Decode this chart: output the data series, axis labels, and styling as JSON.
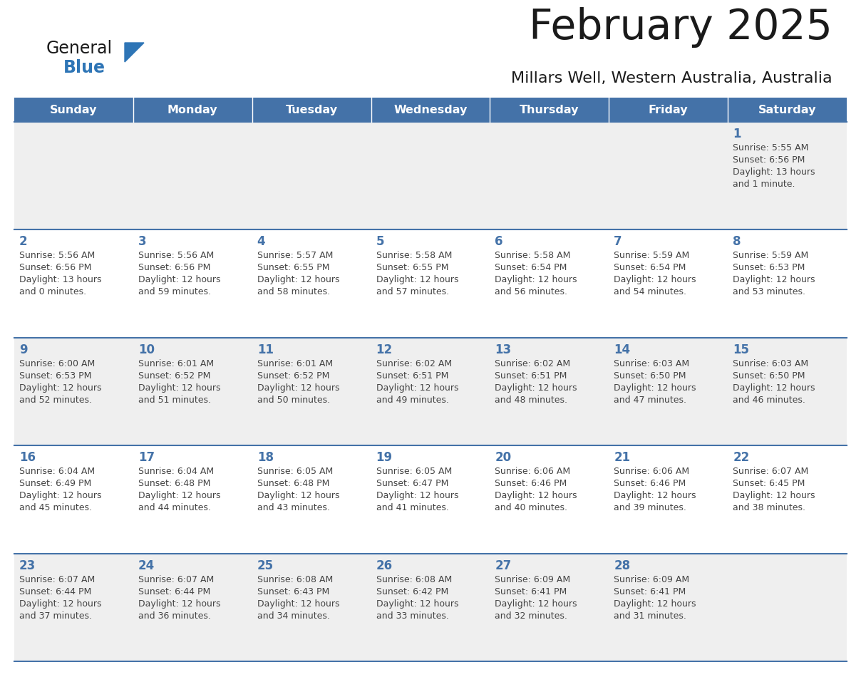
{
  "title": "February 2025",
  "subtitle": "Millars Well, Western Australia, Australia",
  "header_color": "#4472a8",
  "header_text_color": "#ffffff",
  "day_names": [
    "Sunday",
    "Monday",
    "Tuesday",
    "Wednesday",
    "Thursday",
    "Friday",
    "Saturday"
  ],
  "cell_bg_row0": "#efefef",
  "cell_bg_row1": "#ffffff",
  "cell_bg_row2": "#efefef",
  "cell_bg_row3": "#ffffff",
  "cell_bg_row4": "#efefef",
  "cell_border_color": "#4472a8",
  "day_number_color": "#4472a8",
  "text_color": "#444444",
  "logo_general_color": "#1a1a1a",
  "logo_blue_color": "#2e75b6",
  "logo_triangle_color": "#2e75b6",
  "days": [
    {
      "day": 1,
      "col": 6,
      "row": 0,
      "sunrise": "5:55 AM",
      "sunset": "6:56 PM",
      "daylight_h": "13 hours",
      "daylight_m": "and 1 minute."
    },
    {
      "day": 2,
      "col": 0,
      "row": 1,
      "sunrise": "5:56 AM",
      "sunset": "6:56 PM",
      "daylight_h": "13 hours",
      "daylight_m": "and 0 minutes."
    },
    {
      "day": 3,
      "col": 1,
      "row": 1,
      "sunrise": "5:56 AM",
      "sunset": "6:56 PM",
      "daylight_h": "12 hours",
      "daylight_m": "and 59 minutes."
    },
    {
      "day": 4,
      "col": 2,
      "row": 1,
      "sunrise": "5:57 AM",
      "sunset": "6:55 PM",
      "daylight_h": "12 hours",
      "daylight_m": "and 58 minutes."
    },
    {
      "day": 5,
      "col": 3,
      "row": 1,
      "sunrise": "5:58 AM",
      "sunset": "6:55 PM",
      "daylight_h": "12 hours",
      "daylight_m": "and 57 minutes."
    },
    {
      "day": 6,
      "col": 4,
      "row": 1,
      "sunrise": "5:58 AM",
      "sunset": "6:54 PM",
      "daylight_h": "12 hours",
      "daylight_m": "and 56 minutes."
    },
    {
      "day": 7,
      "col": 5,
      "row": 1,
      "sunrise": "5:59 AM",
      "sunset": "6:54 PM",
      "daylight_h": "12 hours",
      "daylight_m": "and 54 minutes."
    },
    {
      "day": 8,
      "col": 6,
      "row": 1,
      "sunrise": "5:59 AM",
      "sunset": "6:53 PM",
      "daylight_h": "12 hours",
      "daylight_m": "and 53 minutes."
    },
    {
      "day": 9,
      "col": 0,
      "row": 2,
      "sunrise": "6:00 AM",
      "sunset": "6:53 PM",
      "daylight_h": "12 hours",
      "daylight_m": "and 52 minutes."
    },
    {
      "day": 10,
      "col": 1,
      "row": 2,
      "sunrise": "6:01 AM",
      "sunset": "6:52 PM",
      "daylight_h": "12 hours",
      "daylight_m": "and 51 minutes."
    },
    {
      "day": 11,
      "col": 2,
      "row": 2,
      "sunrise": "6:01 AM",
      "sunset": "6:52 PM",
      "daylight_h": "12 hours",
      "daylight_m": "and 50 minutes."
    },
    {
      "day": 12,
      "col": 3,
      "row": 2,
      "sunrise": "6:02 AM",
      "sunset": "6:51 PM",
      "daylight_h": "12 hours",
      "daylight_m": "and 49 minutes."
    },
    {
      "day": 13,
      "col": 4,
      "row": 2,
      "sunrise": "6:02 AM",
      "sunset": "6:51 PM",
      "daylight_h": "12 hours",
      "daylight_m": "and 48 minutes."
    },
    {
      "day": 14,
      "col": 5,
      "row": 2,
      "sunrise": "6:03 AM",
      "sunset": "6:50 PM",
      "daylight_h": "12 hours",
      "daylight_m": "and 47 minutes."
    },
    {
      "day": 15,
      "col": 6,
      "row": 2,
      "sunrise": "6:03 AM",
      "sunset": "6:50 PM",
      "daylight_h": "12 hours",
      "daylight_m": "and 46 minutes."
    },
    {
      "day": 16,
      "col": 0,
      "row": 3,
      "sunrise": "6:04 AM",
      "sunset": "6:49 PM",
      "daylight_h": "12 hours",
      "daylight_m": "and 45 minutes."
    },
    {
      "day": 17,
      "col": 1,
      "row": 3,
      "sunrise": "6:04 AM",
      "sunset": "6:48 PM",
      "daylight_h": "12 hours",
      "daylight_m": "and 44 minutes."
    },
    {
      "day": 18,
      "col": 2,
      "row": 3,
      "sunrise": "6:05 AM",
      "sunset": "6:48 PM",
      "daylight_h": "12 hours",
      "daylight_m": "and 43 minutes."
    },
    {
      "day": 19,
      "col": 3,
      "row": 3,
      "sunrise": "6:05 AM",
      "sunset": "6:47 PM",
      "daylight_h": "12 hours",
      "daylight_m": "and 41 minutes."
    },
    {
      "day": 20,
      "col": 4,
      "row": 3,
      "sunrise": "6:06 AM",
      "sunset": "6:46 PM",
      "daylight_h": "12 hours",
      "daylight_m": "and 40 minutes."
    },
    {
      "day": 21,
      "col": 5,
      "row": 3,
      "sunrise": "6:06 AM",
      "sunset": "6:46 PM",
      "daylight_h": "12 hours",
      "daylight_m": "and 39 minutes."
    },
    {
      "day": 22,
      "col": 6,
      "row": 3,
      "sunrise": "6:07 AM",
      "sunset": "6:45 PM",
      "daylight_h": "12 hours",
      "daylight_m": "and 38 minutes."
    },
    {
      "day": 23,
      "col": 0,
      "row": 4,
      "sunrise": "6:07 AM",
      "sunset": "6:44 PM",
      "daylight_h": "12 hours",
      "daylight_m": "and 37 minutes."
    },
    {
      "day": 24,
      "col": 1,
      "row": 4,
      "sunrise": "6:07 AM",
      "sunset": "6:44 PM",
      "daylight_h": "12 hours",
      "daylight_m": "and 36 minutes."
    },
    {
      "day": 25,
      "col": 2,
      "row": 4,
      "sunrise": "6:08 AM",
      "sunset": "6:43 PM",
      "daylight_h": "12 hours",
      "daylight_m": "and 34 minutes."
    },
    {
      "day": 26,
      "col": 3,
      "row": 4,
      "sunrise": "6:08 AM",
      "sunset": "6:42 PM",
      "daylight_h": "12 hours",
      "daylight_m": "and 33 minutes."
    },
    {
      "day": 27,
      "col": 4,
      "row": 4,
      "sunrise": "6:09 AM",
      "sunset": "6:41 PM",
      "daylight_h": "12 hours",
      "daylight_m": "and 32 minutes."
    },
    {
      "day": 28,
      "col": 5,
      "row": 4,
      "sunrise": "6:09 AM",
      "sunset": "6:41 PM",
      "daylight_h": "12 hours",
      "daylight_m": "and 31 minutes."
    }
  ]
}
